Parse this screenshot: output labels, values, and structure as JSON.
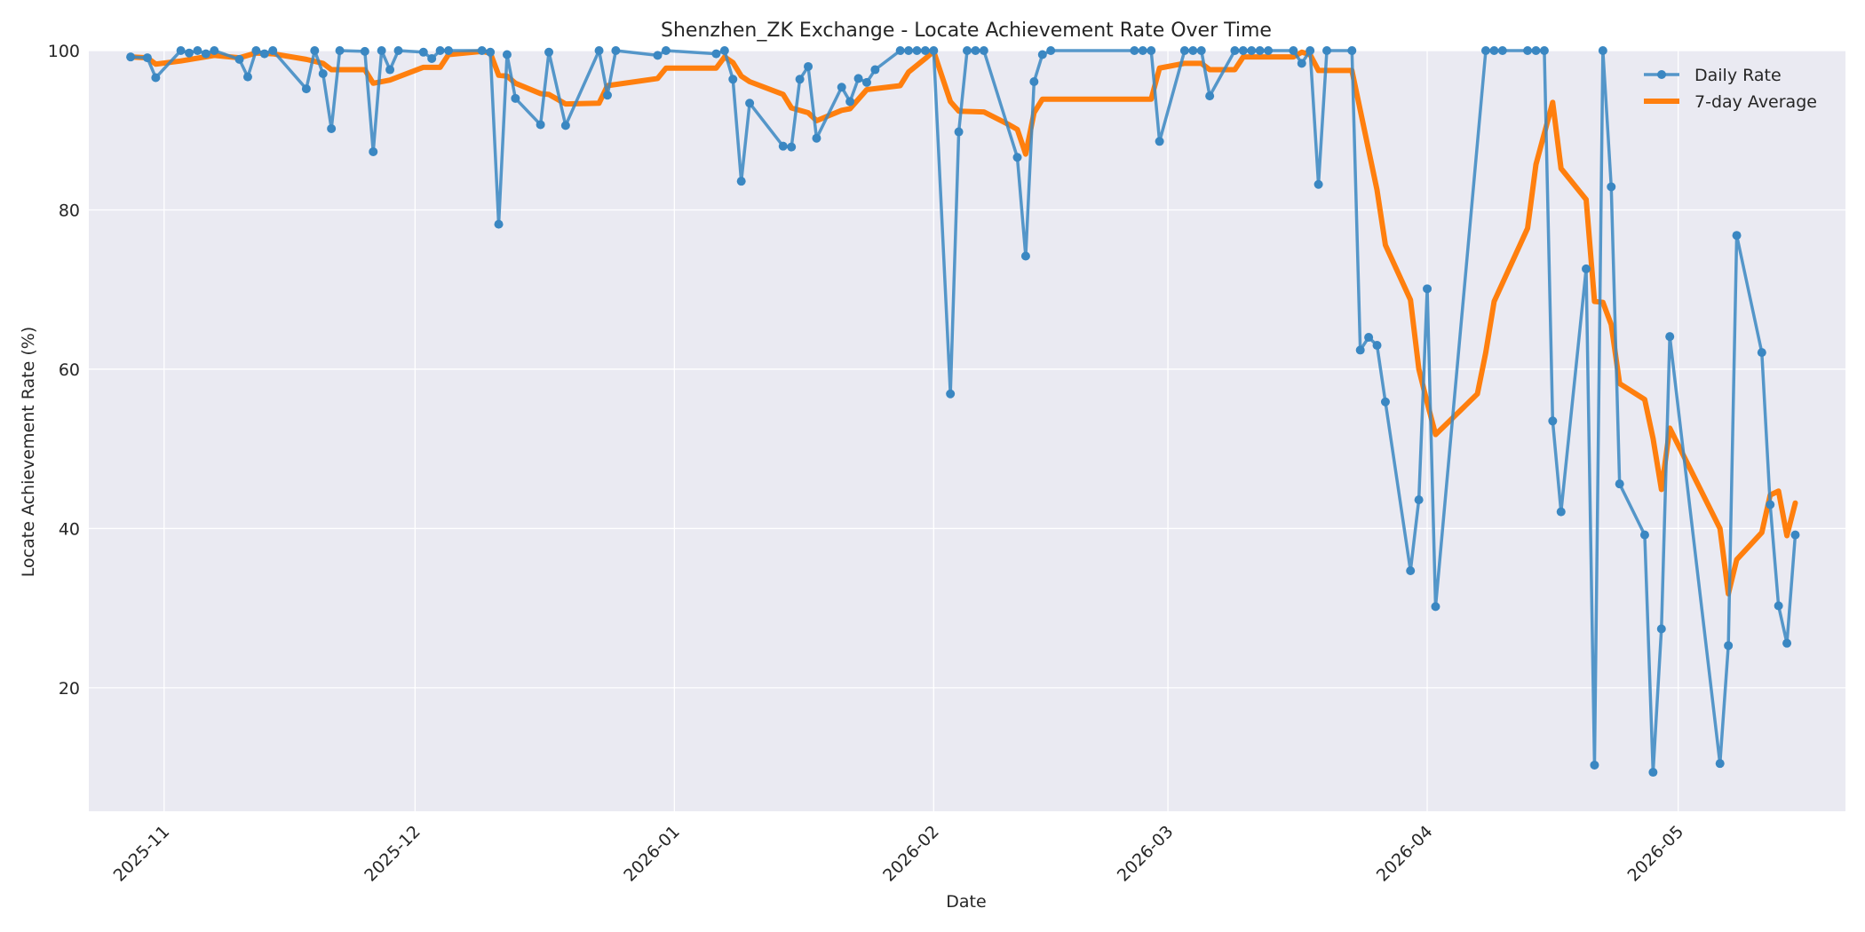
{
  "chart_data": {
    "type": "line",
    "title": "Shenzhen_ZK Exchange - Locate Achievement Rate Over Time",
    "xlabel": "Date",
    "ylabel": "Locate Achievement Rate (%)",
    "xlim": [
      "2025-10-23",
      "2026-05-21"
    ],
    "ylim": [
      4.5,
      100
    ],
    "x_ticks": [
      "2025-11",
      "2025-12",
      "2026-01",
      "2026-02",
      "2026-03",
      "2026-04",
      "2026-05"
    ],
    "y_ticks": [
      20,
      40,
      60,
      80,
      100
    ],
    "grid": true,
    "legend": {
      "placement": "top-right",
      "entries": [
        "Daily Rate",
        "7-day Average"
      ]
    },
    "colors": {
      "daily": "#3a87c2",
      "average": "#ff7f0e",
      "plot_bg": "#eaeaf2",
      "grid": "#ffffff"
    },
    "series": [
      {
        "name": "Daily Rate",
        "style": "line-markers",
        "points": [
          [
            "2025-10-28",
            99.2
          ],
          [
            "2025-10-30",
            99.1
          ],
          [
            "2025-10-31",
            96.6
          ],
          [
            "2025-11-03",
            100
          ],
          [
            "2025-11-04",
            99.7
          ],
          [
            "2025-11-05",
            100
          ],
          [
            "2025-11-06",
            99.6
          ],
          [
            "2025-11-07",
            100
          ],
          [
            "2025-11-10",
            98.9
          ],
          [
            "2025-11-11",
            96.7
          ],
          [
            "2025-11-12",
            100
          ],
          [
            "2025-11-13",
            99.6
          ],
          [
            "2025-11-14",
            100
          ],
          [
            "2025-11-18",
            95.2
          ],
          [
            "2025-11-19",
            100
          ],
          [
            "2025-11-20",
            97.1
          ],
          [
            "2025-11-21",
            90.2
          ],
          [
            "2025-11-22",
            100
          ],
          [
            "2025-11-25",
            99.9
          ],
          [
            "2025-11-26",
            87.3
          ],
          [
            "2025-11-27",
            100
          ],
          [
            "2025-11-28",
            97.6
          ],
          [
            "2025-11-29",
            100
          ],
          [
            "2025-12-02",
            99.8
          ],
          [
            "2025-12-03",
            99.0
          ],
          [
            "2025-12-04",
            100
          ],
          [
            "2025-12-05",
            100
          ],
          [
            "2025-12-09",
            100
          ],
          [
            "2025-12-10",
            99.8
          ],
          [
            "2025-12-11",
            78.2
          ],
          [
            "2025-12-12",
            99.5
          ],
          [
            "2025-12-13",
            94.0
          ],
          [
            "2025-12-16",
            90.7
          ],
          [
            "2025-12-17",
            99.8
          ],
          [
            "2025-12-19",
            90.6
          ],
          [
            "2025-12-23",
            100
          ],
          [
            "2025-12-24",
            94.4
          ],
          [
            "2025-12-25",
            100
          ],
          [
            "2025-12-30",
            99.4
          ],
          [
            "2025-12-31",
            100
          ],
          [
            "2026-01-06",
            99.6
          ],
          [
            "2026-01-07",
            100
          ],
          [
            "2026-01-08",
            96.4
          ],
          [
            "2026-01-09",
            83.6
          ],
          [
            "2026-01-10",
            93.4
          ],
          [
            "2026-01-14",
            88.0
          ],
          [
            "2026-01-15",
            87.9
          ],
          [
            "2026-01-16",
            96.4
          ],
          [
            "2026-01-17",
            98.0
          ],
          [
            "2026-01-18",
            89.0
          ],
          [
            "2026-01-21",
            95.4
          ],
          [
            "2026-01-22",
            93.6
          ],
          [
            "2026-01-23",
            96.5
          ],
          [
            "2026-01-24",
            96.0
          ],
          [
            "2026-01-25",
            97.6
          ],
          [
            "2026-01-28",
            100
          ],
          [
            "2026-01-29",
            100
          ],
          [
            "2026-01-30",
            100
          ],
          [
            "2026-01-31",
            100
          ],
          [
            "2026-02-01",
            100
          ],
          [
            "2026-02-03",
            56.9
          ],
          [
            "2026-02-04",
            89.8
          ],
          [
            "2026-02-05",
            100
          ],
          [
            "2026-02-06",
            100
          ],
          [
            "2026-02-07",
            100
          ],
          [
            "2026-02-11",
            86.6
          ],
          [
            "2026-02-12",
            74.2
          ],
          [
            "2026-02-13",
            96.1
          ],
          [
            "2026-02-14",
            99.5
          ],
          [
            "2026-02-15",
            100
          ],
          [
            "2026-02-25",
            100
          ],
          [
            "2026-02-26",
            100
          ],
          [
            "2026-02-27",
            100
          ],
          [
            "2026-02-28",
            88.6
          ],
          [
            "2026-03-03",
            100
          ],
          [
            "2026-03-04",
            100
          ],
          [
            "2026-03-05",
            100
          ],
          [
            "2026-03-06",
            94.3
          ],
          [
            "2026-03-09",
            100
          ],
          [
            "2026-03-10",
            100
          ],
          [
            "2026-03-11",
            100
          ],
          [
            "2026-03-12",
            100
          ],
          [
            "2026-03-13",
            100
          ],
          [
            "2026-03-16",
            100
          ],
          [
            "2026-03-17",
            98.4
          ],
          [
            "2026-03-18",
            100
          ],
          [
            "2026-03-19",
            83.2
          ],
          [
            "2026-03-20",
            100
          ],
          [
            "2026-03-23",
            100
          ],
          [
            "2026-03-24",
            62.4
          ],
          [
            "2026-03-25",
            64.0
          ],
          [
            "2026-03-26",
            63.0
          ],
          [
            "2026-03-27",
            55.9
          ],
          [
            "2026-03-30",
            34.7
          ],
          [
            "2026-03-31",
            43.6
          ],
          [
            "2026-04-01",
            70.1
          ],
          [
            "2026-04-02",
            30.2
          ],
          [
            "2026-04-08",
            100
          ],
          [
            "2026-04-09",
            100
          ],
          [
            "2026-04-10",
            100
          ],
          [
            "2026-04-13",
            100
          ],
          [
            "2026-04-14",
            100
          ],
          [
            "2026-04-15",
            100
          ],
          [
            "2026-04-16",
            53.5
          ],
          [
            "2026-04-17",
            42.1
          ],
          [
            "2026-04-20",
            72.6
          ],
          [
            "2026-04-21",
            10.3
          ],
          [
            "2026-04-22",
            100
          ],
          [
            "2026-04-23",
            82.9
          ],
          [
            "2026-04-24",
            45.6
          ],
          [
            "2026-04-27",
            39.2
          ],
          [
            "2026-04-28",
            9.4
          ],
          [
            "2026-04-29",
            27.4
          ],
          [
            "2026-04-30",
            64.1
          ],
          [
            "2026-05-06",
            10.5
          ],
          [
            "2026-05-07",
            25.3
          ],
          [
            "2026-05-08",
            76.8
          ],
          [
            "2026-05-11",
            62.1
          ],
          [
            "2026-05-12",
            43.0
          ],
          [
            "2026-05-13",
            30.3
          ],
          [
            "2026-05-14",
            25.6
          ],
          [
            "2026-05-15",
            39.2
          ]
        ]
      },
      {
        "name": "7-day Average",
        "style": "line",
        "points": [
          [
            "2025-10-28",
            99.2
          ],
          [
            "2025-10-30",
            99.1
          ],
          [
            "2025-10-31",
            98.3
          ],
          [
            "2025-11-03",
            98.7
          ],
          [
            "2025-11-07",
            99.4
          ],
          [
            "2025-11-10",
            99.1
          ],
          [
            "2025-11-12",
            99.7
          ],
          [
            "2025-11-14",
            99.6
          ],
          [
            "2025-11-18",
            98.9
          ],
          [
            "2025-11-20",
            98.4
          ],
          [
            "2025-11-21",
            97.6
          ],
          [
            "2025-11-25",
            97.6
          ],
          [
            "2025-11-26",
            95.9
          ],
          [
            "2025-11-28",
            96.3
          ],
          [
            "2025-12-02",
            97.9
          ],
          [
            "2025-12-04",
            97.9
          ],
          [
            "2025-12-05",
            99.5
          ],
          [
            "2025-12-09",
            99.9
          ],
          [
            "2025-12-10",
            99.7
          ],
          [
            "2025-12-11",
            96.9
          ],
          [
            "2025-12-12",
            96.8
          ],
          [
            "2025-12-13",
            95.9
          ],
          [
            "2025-12-16",
            94.6
          ],
          [
            "2025-12-17",
            94.5
          ],
          [
            "2025-12-19",
            93.3
          ],
          [
            "2025-12-23",
            93.4
          ],
          [
            "2025-12-24",
            95.6
          ],
          [
            "2025-12-30",
            96.5
          ],
          [
            "2025-12-31",
            97.8
          ],
          [
            "2026-01-06",
            97.8
          ],
          [
            "2026-01-07",
            99.2
          ],
          [
            "2026-01-08",
            98.5
          ],
          [
            "2026-01-09",
            96.8
          ],
          [
            "2026-01-10",
            96.1
          ],
          [
            "2026-01-14",
            94.5
          ],
          [
            "2026-01-15",
            92.8
          ],
          [
            "2026-01-17",
            92.2
          ],
          [
            "2026-01-18",
            91.2
          ],
          [
            "2026-01-21",
            92.5
          ],
          [
            "2026-01-22",
            92.7
          ],
          [
            "2026-01-24",
            95.1
          ],
          [
            "2026-01-28",
            95.6
          ],
          [
            "2026-01-29",
            97.3
          ],
          [
            "2026-01-31",
            99.0
          ],
          [
            "2026-02-01",
            99.9
          ],
          [
            "2026-02-03",
            93.6
          ],
          [
            "2026-02-04",
            92.4
          ],
          [
            "2026-02-07",
            92.3
          ],
          [
            "2026-02-10",
            90.7
          ],
          [
            "2026-02-11",
            90.1
          ],
          [
            "2026-02-12",
            87.0
          ],
          [
            "2026-02-13",
            92.2
          ],
          [
            "2026-02-14",
            93.9
          ],
          [
            "2026-02-27",
            93.9
          ],
          [
            "2026-02-28",
            97.8
          ],
          [
            "2026-03-03",
            98.4
          ],
          [
            "2026-03-05",
            98.4
          ],
          [
            "2026-03-06",
            97.6
          ],
          [
            "2026-03-09",
            97.6
          ],
          [
            "2026-03-10",
            99.2
          ],
          [
            "2026-03-16",
            99.2
          ],
          [
            "2026-03-17",
            99.8
          ],
          [
            "2026-03-18",
            99.5
          ],
          [
            "2026-03-19",
            97.5
          ],
          [
            "2026-03-23",
            97.5
          ],
          [
            "2026-03-26",
            82.5
          ],
          [
            "2026-03-27",
            75.6
          ],
          [
            "2026-03-30",
            68.7
          ],
          [
            "2026-03-31",
            60.0
          ],
          [
            "2026-04-01",
            55.8
          ],
          [
            "2026-04-02",
            51.8
          ],
          [
            "2026-04-07",
            56.9
          ],
          [
            "2026-04-08",
            62.1
          ],
          [
            "2026-04-09",
            68.5
          ],
          [
            "2026-04-13",
            77.7
          ],
          [
            "2026-04-14",
            85.7
          ],
          [
            "2026-04-16",
            93.5
          ],
          [
            "2026-04-17",
            85.2
          ],
          [
            "2026-04-20",
            81.3
          ],
          [
            "2026-04-21",
            68.5
          ],
          [
            "2026-04-22",
            68.4
          ],
          [
            "2026-04-23",
            65.6
          ],
          [
            "2026-04-24",
            58.2
          ],
          [
            "2026-04-27",
            56.2
          ],
          [
            "2026-04-28",
            51.3
          ],
          [
            "2026-04-29",
            44.9
          ],
          [
            "2026-04-30",
            52.6
          ],
          [
            "2026-05-06",
            40.0
          ],
          [
            "2026-05-07",
            31.8
          ],
          [
            "2026-05-08",
            36.1
          ],
          [
            "2026-05-11",
            39.5
          ],
          [
            "2026-05-12",
            44.2
          ],
          [
            "2026-05-13",
            44.7
          ],
          [
            "2026-05-14",
            39.1
          ],
          [
            "2026-05-15",
            43.2
          ]
        ]
      }
    ]
  }
}
